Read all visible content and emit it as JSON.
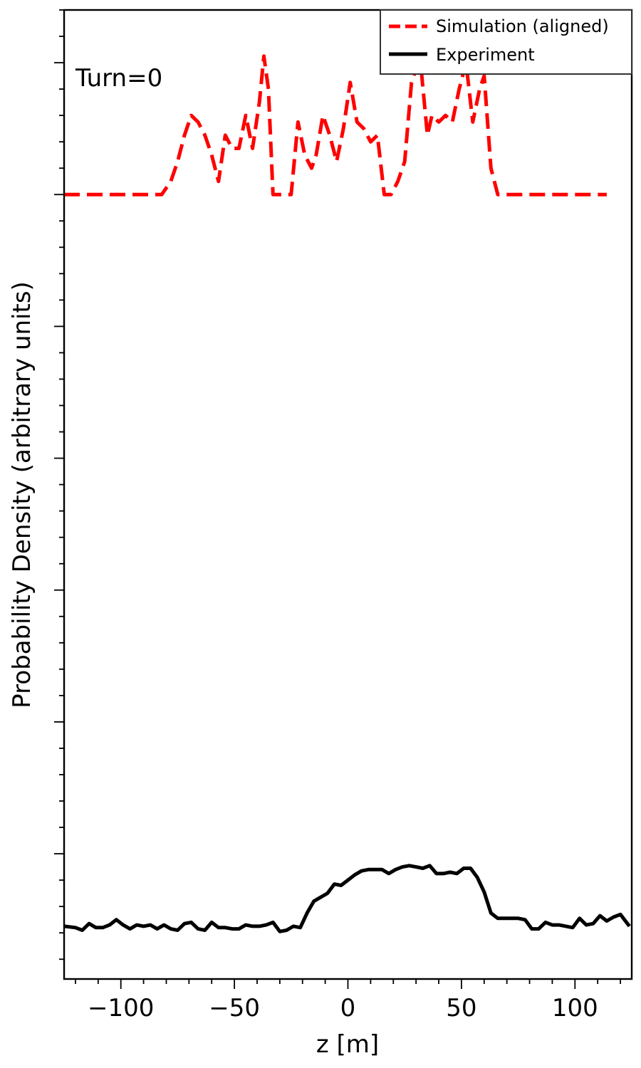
{
  "chart_data": {
    "type": "line",
    "title": "",
    "annotation": "Turn=0",
    "xlabel": "z [m]",
    "ylabel": "Probability Density (arbitrary units)",
    "xlim": [
      -125,
      125
    ],
    "ylim": [
      -1.95,
      5.4
    ],
    "xticks": [
      -100,
      -50,
      0,
      50,
      100
    ],
    "xtick_labels": [
      "−100",
      "−50",
      "0",
      "50",
      "100"
    ],
    "yticks_major": [
      -1.0,
      0.0,
      1.0,
      2.0,
      3.0,
      4.0,
      5.0
    ],
    "y_tick_labels_shown": false,
    "legend_position": "top-right",
    "series": [
      {
        "name": "Simulation (aligned)",
        "color": "#ff0000",
        "style": "dashed",
        "x": [
          -125,
          -82,
          -78,
          -75,
          -72,
          -69,
          -66,
          -63,
          -60,
          -57,
          -54,
          -51,
          -48,
          -45,
          -42,
          -39,
          -37,
          -35,
          -33,
          -30,
          -27,
          -25,
          -22,
          -19,
          -16,
          -14,
          -11,
          -8,
          -5,
          -2,
          1,
          4,
          7,
          10,
          13,
          16,
          19,
          22,
          25,
          28,
          30,
          32,
          35,
          37,
          40,
          43,
          46,
          49,
          52,
          55,
          58,
          60,
          63,
          66,
          70,
          80,
          90,
          100,
          114
        ],
        "y": [
          4.0,
          4.0,
          4.1,
          4.25,
          4.45,
          4.6,
          4.55,
          4.45,
          4.3,
          4.1,
          4.45,
          4.35,
          4.35,
          4.6,
          4.35,
          4.7,
          5.05,
          4.8,
          4.0,
          4.0,
          4.0,
          4.0,
          4.55,
          4.3,
          4.2,
          4.3,
          4.6,
          4.45,
          4.25,
          4.5,
          4.85,
          4.55,
          4.5,
          4.4,
          4.45,
          4.0,
          4.0,
          4.1,
          4.25,
          4.85,
          4.95,
          5.0,
          4.45,
          4.6,
          4.55,
          4.6,
          4.55,
          4.8,
          5.0,
          4.55,
          4.8,
          4.9,
          4.2,
          4.0,
          4.0,
          4.0,
          4.0,
          4.0,
          4.0
        ]
      },
      {
        "name": "Experiment",
        "color": "#000000",
        "style": "solid",
        "x": [
          -125,
          -120,
          -117,
          -114,
          -111,
          -108,
          -105,
          -102,
          -99,
          -96,
          -93,
          -90,
          -87,
          -84,
          -81,
          -78,
          -75,
          -72,
          -69,
          -66,
          -63,
          -60,
          -57,
          -54,
          -51,
          -48,
          -45,
          -42,
          -39,
          -36,
          -33,
          -30,
          -27,
          -24,
          -21,
          -18,
          -15,
          -12,
          -9,
          -6,
          -3,
          0,
          3,
          6,
          9,
          12,
          15,
          18,
          21,
          24,
          27,
          30,
          33,
          36,
          39,
          42,
          45,
          48,
          51,
          54,
          57,
          60,
          63,
          66,
          69,
          72,
          75,
          78,
          81,
          84,
          87,
          90,
          93,
          96,
          99,
          102,
          105,
          108,
          111,
          114,
          117,
          120,
          124
        ],
        "y": [
          -1.55,
          -1.56,
          -1.58,
          -1.53,
          -1.56,
          -1.56,
          -1.54,
          -1.5,
          -1.54,
          -1.57,
          -1.54,
          -1.55,
          -1.54,
          -1.57,
          -1.54,
          -1.57,
          -1.58,
          -1.53,
          -1.52,
          -1.57,
          -1.58,
          -1.52,
          -1.56,
          -1.56,
          -1.57,
          -1.57,
          -1.54,
          -1.55,
          -1.55,
          -1.54,
          -1.52,
          -1.59,
          -1.58,
          -1.55,
          -1.56,
          -1.45,
          -1.36,
          -1.33,
          -1.3,
          -1.23,
          -1.24,
          -1.2,
          -1.16,
          -1.13,
          -1.12,
          -1.12,
          -1.12,
          -1.15,
          -1.12,
          -1.1,
          -1.09,
          -1.1,
          -1.11,
          -1.09,
          -1.15,
          -1.15,
          -1.14,
          -1.15,
          -1.11,
          -1.11,
          -1.18,
          -1.29,
          -1.45,
          -1.49,
          -1.49,
          -1.49,
          -1.49,
          -1.5,
          -1.57,
          -1.57,
          -1.52,
          -1.54,
          -1.54,
          -1.55,
          -1.56,
          -1.49,
          -1.54,
          -1.53,
          -1.47,
          -1.51,
          -1.48,
          -1.46,
          -1.55
        ]
      }
    ]
  }
}
